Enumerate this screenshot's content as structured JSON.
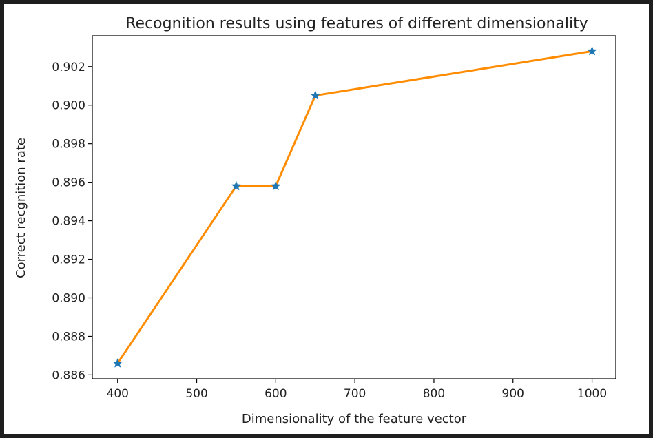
{
  "chart_data": {
    "type": "line",
    "title": "Recognition results using features of different dimensionality",
    "xlabel": "Dimensionality of the feature vector",
    "ylabel": "Correct recgnition rate",
    "x": [
      400,
      550,
      600,
      650,
      1000
    ],
    "series": [
      {
        "values": [
          0.8866,
          0.8958,
          0.8958,
          0.9005,
          0.9028
        ]
      }
    ],
    "xlim": [
      368,
      1030
    ],
    "ylim": [
      0.8858,
      0.9036
    ],
    "x_ticks": [
      400,
      500,
      600,
      700,
      800,
      900,
      1000
    ],
    "y_ticks": [
      0.886,
      0.888,
      0.89,
      0.892,
      0.894,
      0.896,
      0.898,
      0.9,
      0.902
    ],
    "line_color": "#ff8c00",
    "marker": "star",
    "marker_color": "#1f77b4",
    "grid": false,
    "background": "#1e1e1e"
  }
}
